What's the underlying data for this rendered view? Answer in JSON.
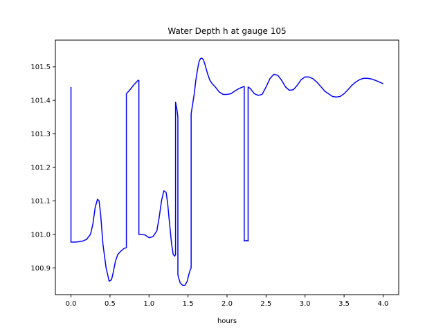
{
  "chart_data": {
    "type": "line",
    "title": "Water Depth h at gauge 105",
    "xlabel": "hours",
    "ylabel": "",
    "xlim": [
      -0.2,
      4.2
    ],
    "ylim": [
      100.82,
      101.58
    ],
    "xticks": [
      0.0,
      0.5,
      1.0,
      1.5,
      2.0,
      2.5,
      3.0,
      3.5,
      4.0
    ],
    "xtick_labels": [
      "0.0",
      "0.5",
      "1.0",
      "1.5",
      "2.0",
      "2.5",
      "3.0",
      "3.5",
      "4.0"
    ],
    "yticks": [
      100.9,
      101.0,
      101.1,
      101.2,
      101.3,
      101.4,
      101.5
    ],
    "ytick_labels": [
      "100.9",
      "101.0",
      "101.1",
      "101.2",
      "101.3",
      "101.4",
      "101.5"
    ],
    "grid": false,
    "legend": "none",
    "series": [
      {
        "color": "#0000ff",
        "x": [
          0.0,
          0.0,
          0.05,
          0.1,
          0.15,
          0.2,
          0.25,
          0.28,
          0.31,
          0.34,
          0.36,
          0.38,
          0.41,
          0.45,
          0.49,
          0.52,
          0.54,
          0.57,
          0.6,
          0.64,
          0.68,
          0.71,
          0.71,
          0.75,
          0.8,
          0.86,
          0.87,
          0.87,
          0.9,
          0.95,
          1.0,
          1.05,
          1.1,
          1.13,
          1.16,
          1.19,
          1.22,
          1.24,
          1.26,
          1.29,
          1.31,
          1.33,
          1.34,
          1.34,
          1.36,
          1.37,
          1.37,
          1.38,
          1.4,
          1.43,
          1.46,
          1.49,
          1.51,
          1.53,
          1.54,
          1.54,
          1.56,
          1.58,
          1.6,
          1.62,
          1.64,
          1.66,
          1.68,
          1.7,
          1.72,
          1.75,
          1.78,
          1.81,
          1.85,
          1.9,
          1.95,
          2.0,
          2.05,
          2.1,
          2.15,
          2.2,
          2.22,
          2.22,
          2.25,
          2.27,
          2.27,
          2.3,
          2.35,
          2.4,
          2.45,
          2.5,
          2.55,
          2.6,
          2.65,
          2.7,
          2.75,
          2.8,
          2.85,
          2.9,
          2.95,
          3.0,
          3.05,
          3.1,
          3.15,
          3.2,
          3.25,
          3.3,
          3.35,
          3.4,
          3.45,
          3.5,
          3.55,
          3.6,
          3.65,
          3.7,
          3.75,
          3.8,
          3.85,
          3.9,
          3.95,
          4.0
        ],
        "y": [
          101.44,
          100.977,
          100.977,
          100.978,
          100.98,
          100.985,
          101.0,
          101.03,
          101.08,
          101.105,
          101.1,
          101.06,
          100.97,
          100.9,
          100.86,
          100.865,
          100.885,
          100.92,
          100.94,
          100.95,
          100.958,
          100.96,
          101.42,
          101.43,
          101.445,
          101.46,
          101.46,
          101.0,
          101.0,
          100.998,
          100.99,
          100.993,
          101.01,
          101.05,
          101.1,
          101.13,
          101.125,
          101.09,
          101.04,
          100.97,
          100.94,
          100.935,
          100.94,
          101.395,
          101.37,
          101.35,
          100.88,
          100.87,
          100.855,
          100.848,
          100.848,
          100.86,
          100.88,
          100.895,
          100.9,
          101.36,
          101.39,
          101.42,
          101.46,
          101.49,
          101.515,
          101.525,
          101.526,
          101.52,
          101.505,
          101.48,
          101.46,
          101.45,
          101.44,
          101.425,
          101.418,
          101.418,
          101.42,
          101.428,
          101.435,
          101.44,
          101.442,
          100.98,
          100.982,
          100.98,
          101.44,
          101.435,
          101.42,
          101.415,
          101.418,
          101.44,
          101.465,
          101.478,
          101.475,
          101.46,
          101.44,
          101.43,
          101.432,
          101.445,
          101.462,
          101.47,
          101.47,
          101.465,
          101.455,
          101.442,
          101.428,
          101.42,
          101.412,
          101.41,
          101.412,
          101.42,
          101.432,
          101.445,
          101.455,
          101.462,
          101.466,
          101.466,
          101.464,
          101.46,
          101.455,
          101.45
        ]
      }
    ]
  }
}
